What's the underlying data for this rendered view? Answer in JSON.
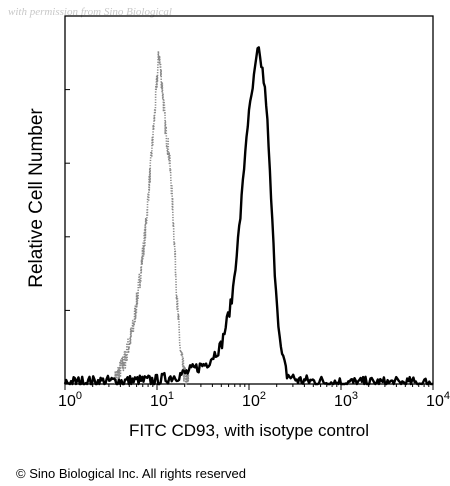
{
  "watermark": "with permission from Sino Biological",
  "copyright": "© Sino Biological Inc. All rights reserved",
  "chart_data": {
    "type": "area",
    "title": "",
    "xlabel": "FITC CD93, with isotype control",
    "ylabel": "Relative Cell Number",
    "xscale": "log",
    "xlim": [
      1,
      10000
    ],
    "ylim": [
      0,
      100
    ],
    "grid": false,
    "legend": "none",
    "x_ticks": [
      {
        "base": "10",
        "exp": "0"
      },
      {
        "base": "10",
        "exp": "1"
      },
      {
        "base": "10",
        "exp": "2"
      },
      {
        "base": "10",
        "exp": "3"
      },
      {
        "base": "10",
        "exp": "4"
      }
    ],
    "series": [
      {
        "role": "isotype control",
        "style": "dotted",
        "color": "#888888",
        "x": [
          3.5,
          4.5,
          5.5,
          6.5,
          7.5,
          8.5,
          9.3,
          10.5,
          11.5,
          12.5,
          13.5,
          14.5,
          15.5,
          16.5,
          18,
          20,
          22
        ],
        "y": [
          1,
          7,
          16,
          30,
          44,
          62,
          75,
          95,
          84,
          72,
          66,
          55,
          40,
          24,
          9,
          2,
          0.5
        ]
      },
      {
        "role": "FITC CD93",
        "style": "solid",
        "color": "#000000",
        "x": [
          1,
          10,
          20,
          35,
          50,
          65,
          80,
          95,
          110,
          125,
          140,
          155,
          170,
          190,
          220,
          260,
          350,
          600,
          1000,
          3000,
          10000
        ],
        "y": [
          0.5,
          1,
          3,
          6,
          11,
          24,
          47,
          73,
          85,
          96,
          90,
          80,
          58,
          33,
          10,
          2.5,
          1,
          0.7,
          0.4,
          0.3,
          0.3
        ]
      }
    ]
  }
}
